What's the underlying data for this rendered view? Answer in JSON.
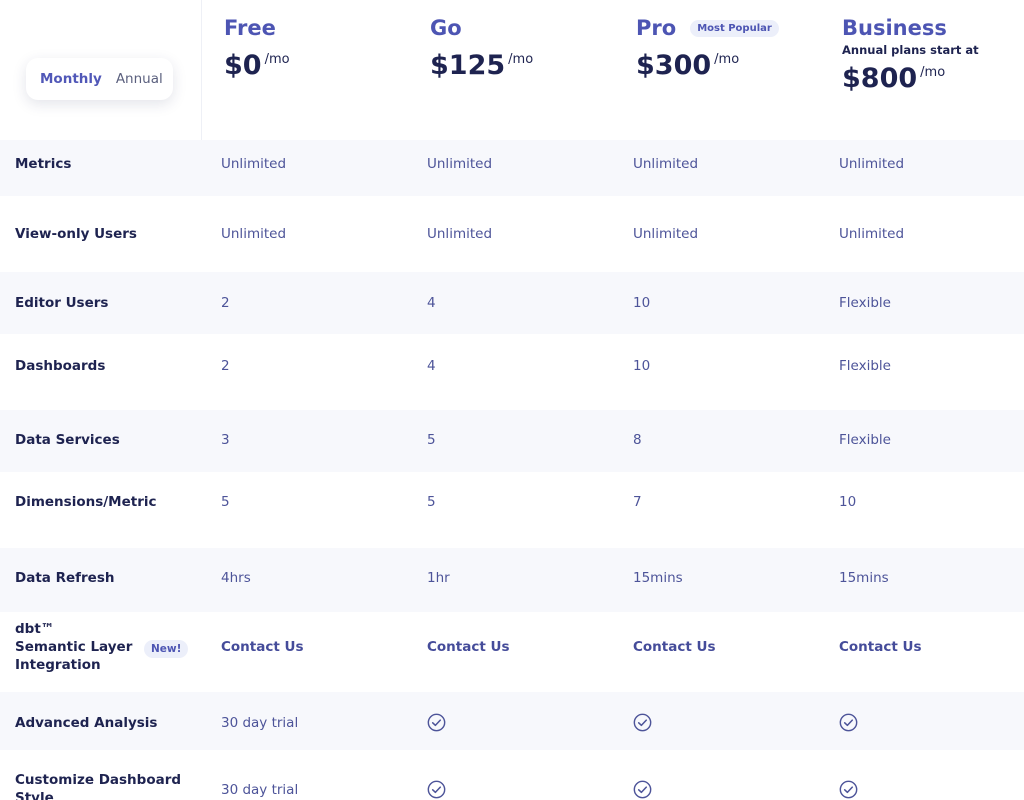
{
  "toggle": {
    "monthly": "Monthly",
    "annual": "Annual"
  },
  "plans": [
    {
      "name": "Free",
      "amount": "$0",
      "per": "/mo"
    },
    {
      "name": "Go",
      "amount": "$125",
      "per": "/mo"
    },
    {
      "name": "Pro",
      "badge": "Most Popular",
      "amount": "$300",
      "per": "/mo"
    },
    {
      "name": "Business",
      "note": "Annual plans start at",
      "amount": "$800",
      "per": "/mo"
    }
  ],
  "rows": [
    {
      "feature": "Metrics",
      "values": [
        "Unlimited",
        "Unlimited",
        "Unlimited",
        "Unlimited"
      ]
    },
    {
      "feature": "View-only Users",
      "values": [
        "Unlimited",
        "Unlimited",
        "Unlimited",
        "Unlimited"
      ]
    },
    {
      "feature": "Editor Users",
      "values": [
        "2",
        "4",
        "10",
        "Flexible"
      ]
    },
    {
      "feature": "Dashboards",
      "values": [
        "2",
        "4",
        "10",
        "Flexible"
      ]
    },
    {
      "feature": "Data Services",
      "values": [
        "3",
        "5",
        "8",
        "Flexible"
      ]
    },
    {
      "feature": "Dimensions/Metric",
      "values": [
        "5",
        "5",
        "7",
        "10"
      ]
    },
    {
      "feature": "Data Refresh",
      "values": [
        "4hrs",
        "1hr",
        "15mins",
        "15mins"
      ]
    },
    {
      "feature": "dbt™ Semantic Layer Integration",
      "feature_lines": [
        "dbt™",
        "Semantic Layer",
        "Integration"
      ],
      "feature_badge": "New!",
      "values": [
        "Contact Us",
        "Contact Us",
        "Contact Us",
        "Contact Us"
      ]
    },
    {
      "feature": "Advanced Analysis",
      "values": [
        "30 day trial",
        "check",
        "check",
        "check"
      ]
    },
    {
      "feature": "Customize Dashboard Style",
      "feature_lines": [
        "Customize Dashboard",
        "Style"
      ],
      "values": [
        "30 day trial",
        "check",
        "check",
        "check"
      ]
    }
  ],
  "icons": {
    "check": "check-circle-icon"
  },
  "colors": {
    "accent": "#4d55b3",
    "text": "#1e2350",
    "row_alt": "#f7f8fc"
  }
}
